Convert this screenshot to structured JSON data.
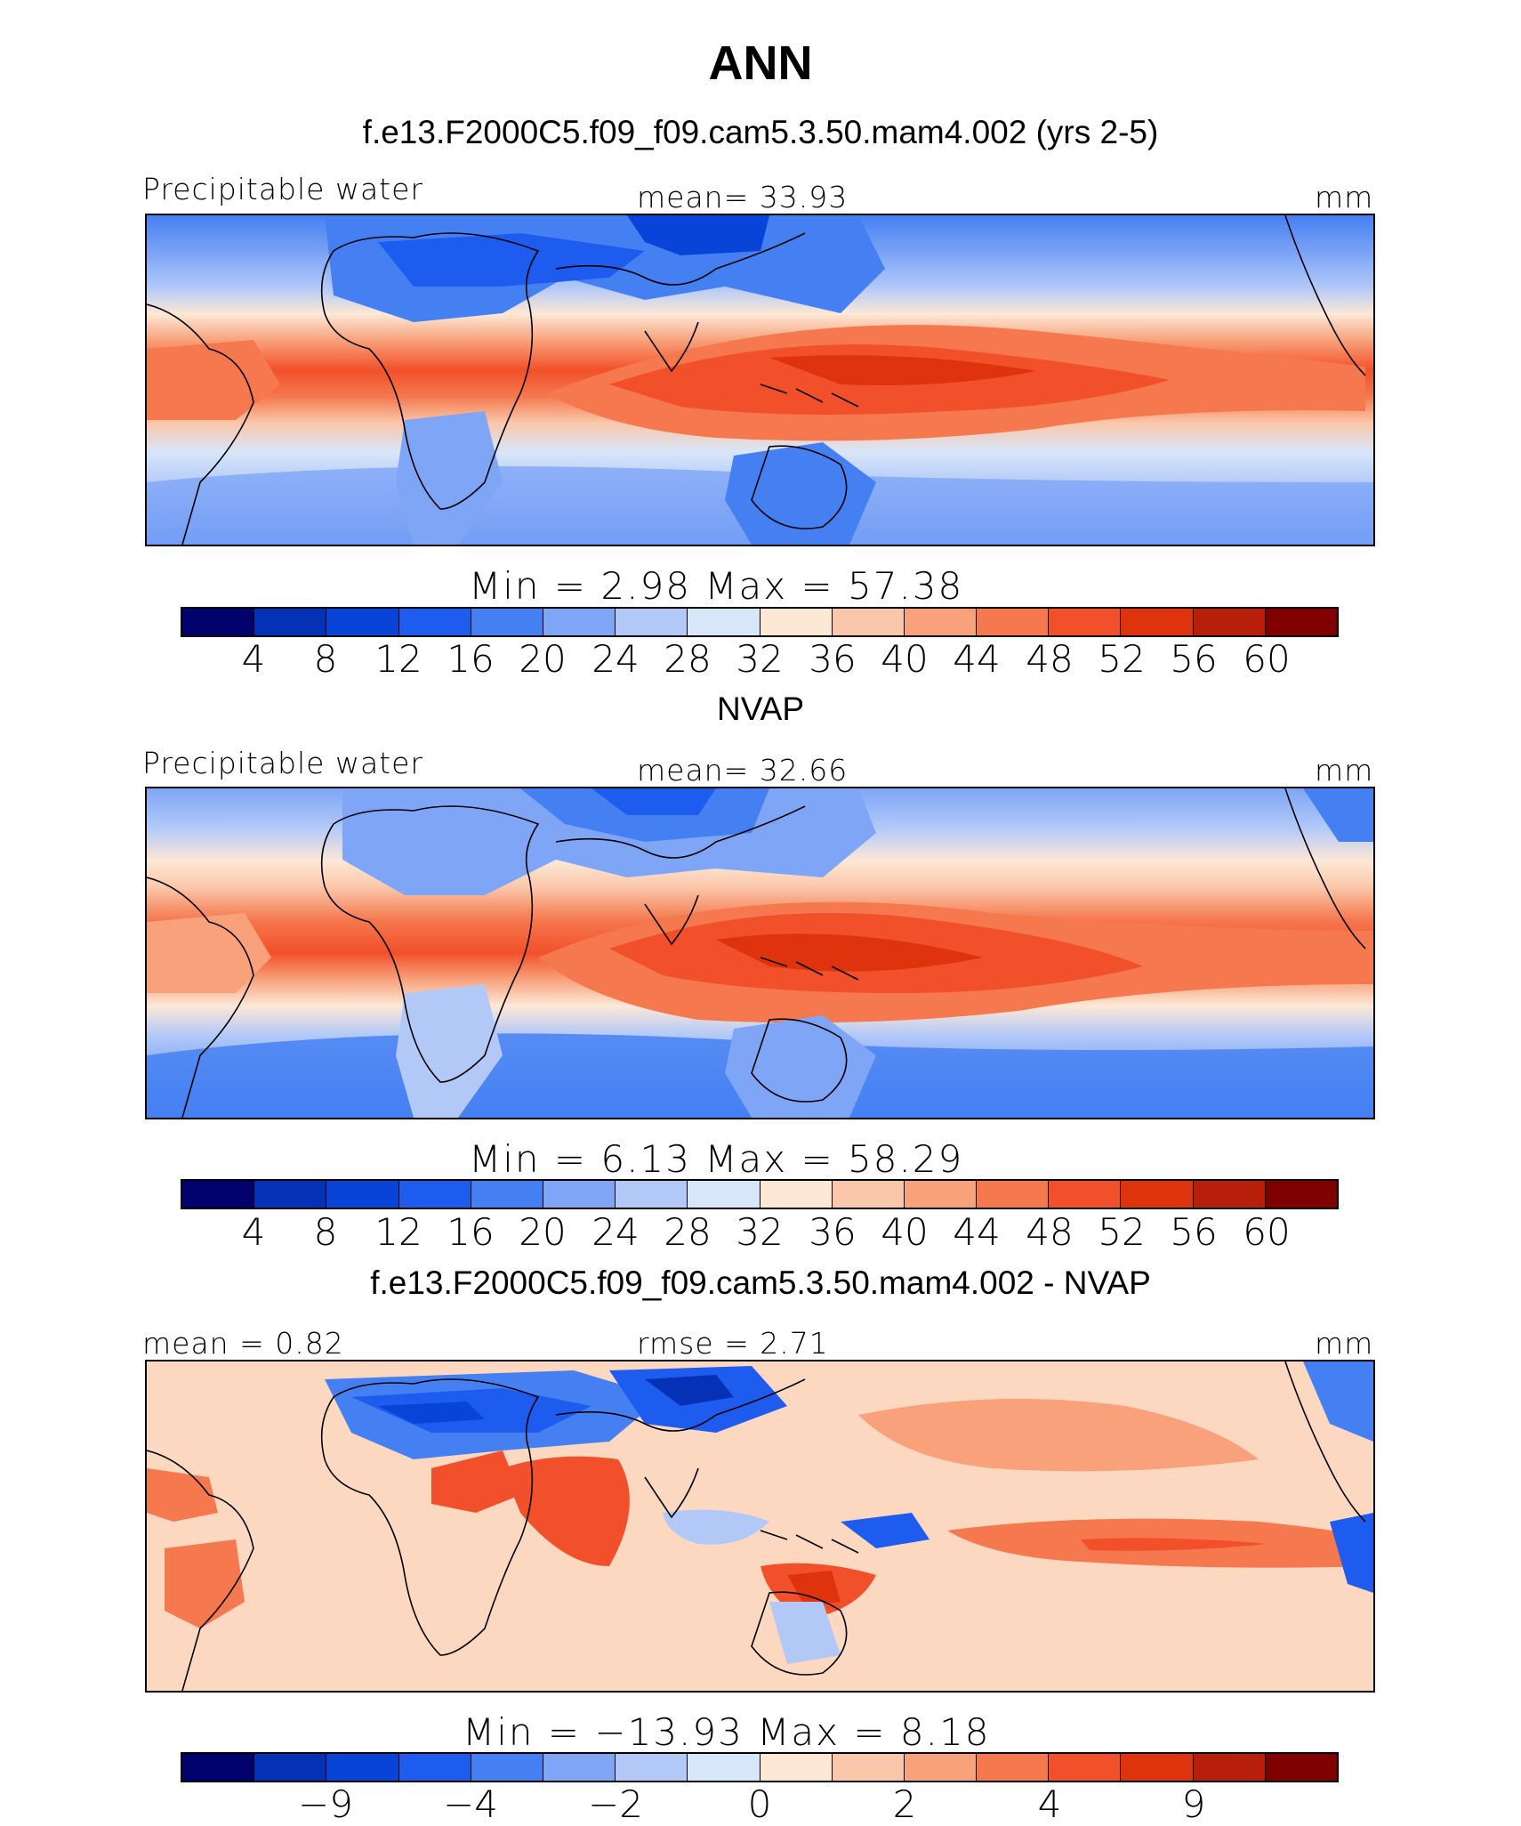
{
  "title": "ANN",
  "palette": [
    "#02026e",
    "#0431b5",
    "#0844d8",
    "#1e5cf0",
    "#4580f2",
    "#7ea5f6",
    "#b2c9f8",
    "#d8e6fa",
    "#fde8d6",
    "#fbc7aa",
    "#f8a17b",
    "#f5784e",
    "#f2502a",
    "#df330d",
    "#b81f0b",
    "#800000"
  ],
  "panels": [
    {
      "subtitle": "f.e13.F2000C5.f09_f09.cam5.3.50.mam4.002 (yrs 2-5)",
      "left_label": "Precipitable water",
      "center_label": "mean=   33.93",
      "right_label": "mm",
      "minmax": "Min  =     2.98  Max  =    57.38",
      "ticks": [
        "4",
        "8",
        "12",
        "16",
        "20",
        "24",
        "28",
        "32",
        "36",
        "40",
        "44",
        "48",
        "52",
        "56",
        "60"
      ]
    },
    {
      "subtitle": "NVAP",
      "left_label": "Precipitable water",
      "center_label": "mean=   32.66",
      "right_label": "mm",
      "minmax": "Min  =     6.13  Max  =    58.29",
      "ticks": [
        "4",
        "8",
        "12",
        "16",
        "20",
        "24",
        "28",
        "32",
        "36",
        "40",
        "44",
        "48",
        "52",
        "56",
        "60"
      ]
    },
    {
      "subtitle": "f.e13.F2000C5.f09_f09.cam5.3.50.mam4.002 - NVAP",
      "left_label": "mean  =    0.82",
      "center_label": "rmse  =    2.71",
      "right_label": "mm",
      "minmax": "Min  =  −13.93  Max  =     8.18",
      "ticks": [
        "−9",
        "−4",
        "−2",
        "0",
        "2",
        "4",
        "9"
      ]
    }
  ],
  "chart_data": [
    {
      "type": "heatmap",
      "title": "f.e13.F2000C5.f09_f09.cam5.3.50.mam4.002 (yrs 2-5)",
      "variable": "Precipitable water",
      "units": "mm",
      "mean": 33.93,
      "min": 2.98,
      "max": 57.38,
      "contour_levels": [
        4,
        8,
        12,
        16,
        20,
        24,
        28,
        32,
        36,
        40,
        44,
        48,
        52,
        56,
        60
      ],
      "colormap": "blue-white-red, 16 bins"
    },
    {
      "type": "heatmap",
      "title": "NVAP",
      "variable": "Precipitable water",
      "units": "mm",
      "mean": 32.66,
      "min": 6.13,
      "max": 58.29,
      "contour_levels": [
        4,
        8,
        12,
        16,
        20,
        24,
        28,
        32,
        36,
        40,
        44,
        48,
        52,
        56,
        60
      ],
      "colormap": "blue-white-red, 16 bins"
    },
    {
      "type": "heatmap",
      "title": "f.e13.F2000C5.f09_f09.cam5.3.50.mam4.002 - NVAP",
      "units": "mm",
      "mean": 0.82,
      "rmse": 2.71,
      "min": -13.93,
      "max": 8.18,
      "contour_levels": [
        -9,
        -4,
        -2,
        0,
        2,
        4,
        9
      ],
      "colormap": "blue-white-red, 16 bins"
    }
  ]
}
